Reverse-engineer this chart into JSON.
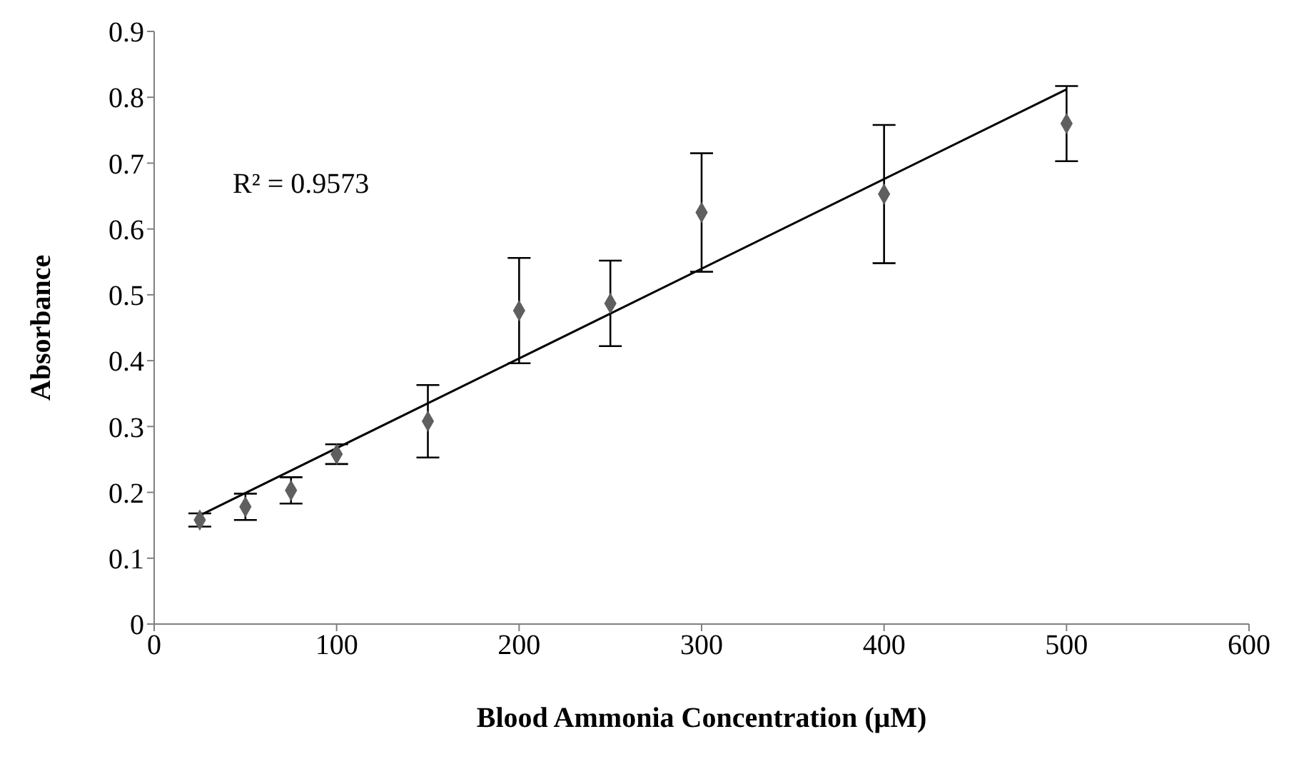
{
  "chart_data": {
    "type": "scatter",
    "xlabel": "Blood Ammonia Concentration (μM)",
    "ylabel": "Absorbance",
    "x": [
      25,
      50,
      75,
      100,
      150,
      200,
      250,
      300,
      400,
      500
    ],
    "series": [
      {
        "color": "#5f5f5f",
        "marker": "diamond",
        "values": [
          0.158,
          0.178,
          0.203,
          0.258,
          0.308,
          0.476,
          0.487,
          0.625,
          0.653,
          0.76
        ],
        "errors": [
          0.01,
          0.02,
          0.02,
          0.015,
          0.055,
          0.08,
          0.065,
          0.09,
          0.105,
          0.057
        ]
      },
      {
        "type": "line",
        "color": "#000000",
        "marker": "none",
        "line_style": "solid",
        "x": [
          25,
          500
        ],
        "values": [
          0.165,
          0.812
        ]
      }
    ],
    "annotations": [
      "R² = 0.9573"
    ],
    "xlim": [
      0,
      600
    ],
    "xticks": [
      0,
      100,
      200,
      300,
      400,
      500,
      600
    ],
    "ylim": [
      0,
      0.9
    ],
    "yticks": [
      0,
      0.1,
      0.2,
      0.3,
      0.4,
      0.5,
      0.6,
      0.7,
      0.8,
      0.9
    ],
    "grid": false,
    "legend": false
  }
}
